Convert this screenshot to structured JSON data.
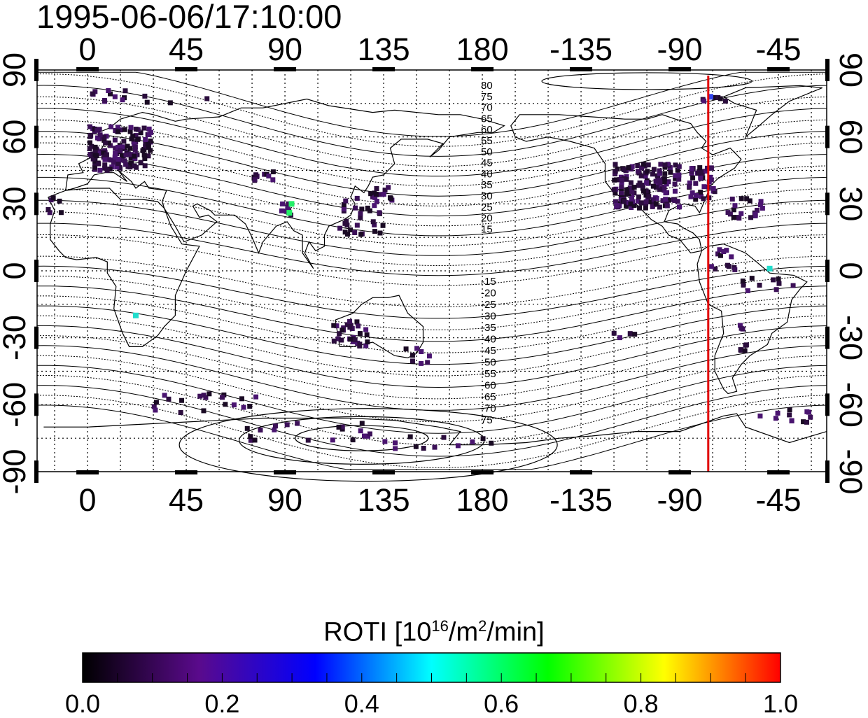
{
  "timestamp": "1995-06-06/17:10:00",
  "map": {
    "projection": "cylindrical-equidistant",
    "lon_range": [
      -23,
      337
    ],
    "lat_range": [
      -90,
      90
    ],
    "top_lon_ticks": [
      "0",
      "45",
      "90",
      "135",
      "180",
      "-135",
      "-90",
      "-45"
    ],
    "bottom_lon_ticks": [
      "0",
      "45",
      "90",
      "135",
      "180",
      "-135",
      "-90",
      "-45"
    ],
    "lon_tick_values": [
      0,
      45,
      90,
      135,
      180,
      225,
      270,
      315
    ],
    "left_lat_ticks": [
      "90",
      "60",
      "30",
      "0",
      "-30",
      "-60",
      "-90"
    ],
    "right_lat_ticks": [
      "90",
      "60",
      "30",
      "0",
      "-30",
      "-60",
      "-90"
    ],
    "lat_tick_values": [
      90,
      60,
      30,
      0,
      -30,
      -60,
      -90
    ],
    "terminator_line": {
      "lon": 283,
      "color": "#e00000"
    },
    "magnetic_contour_labels": {
      "north": [
        "80",
        "75",
        "70",
        "65",
        "60",
        "55",
        "50",
        "45",
        "40",
        "35",
        "30",
        "25",
        "20",
        "15"
      ],
      "south": [
        "-15",
        "-20",
        "-25",
        "-30",
        "-35",
        "-40",
        "-45",
        "-50",
        "-55",
        "-60",
        "-65",
        "-70",
        "75"
      ]
    }
  },
  "colorbar": {
    "title_prefix": "ROTI  [10",
    "title_exp1": "16",
    "title_mid": "/m",
    "title_exp2": "2",
    "title_suffix": "/min]",
    "range": [
      0.0,
      1.0
    ],
    "tick_labels": [
      "0.0",
      "0.2",
      "0.4",
      "0.6",
      "0.8",
      "1.0"
    ],
    "colors": [
      "#000000",
      "#5a0a8c",
      "#0000ff",
      "#00ffff",
      "#00ff00",
      "#ffff00",
      "#ff0000"
    ]
  }
}
